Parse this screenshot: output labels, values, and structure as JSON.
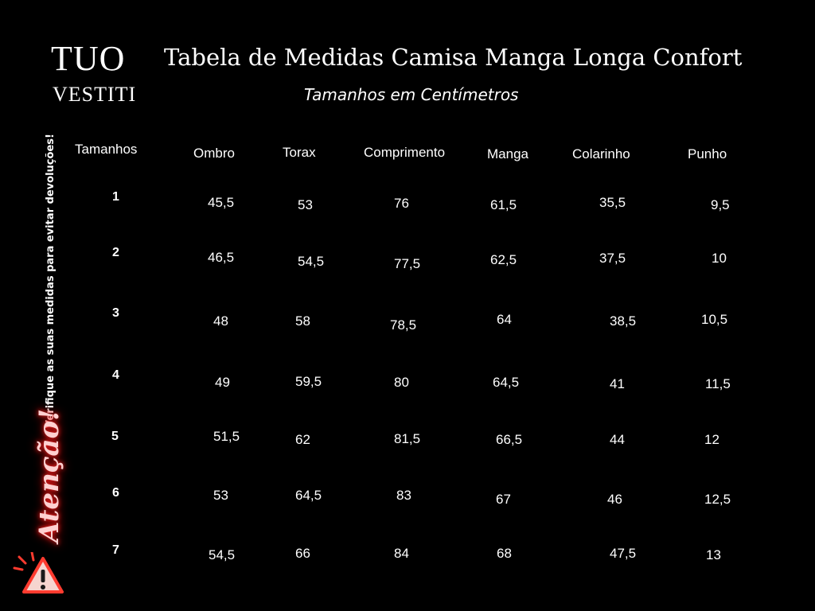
{
  "logo": {
    "line1": "TUO",
    "line2": "VESTITI"
  },
  "title": "Tabela de Medidas Camisa Manga Longa Confort",
  "subtitle": "Tamanhos em Centímetros",
  "notice": "Verifique as suas medidas para evitar devoluções!",
  "attention": "Atenção!",
  "warning_icon": "warning-triangle-icon",
  "colors": {
    "background": "#000000",
    "text": "#ffffff",
    "attention_glow": "#ff2a2a"
  },
  "table": {
    "headers": [
      "Tamanhos",
      "Ombro",
      "Torax",
      "Comprimento",
      "Manga",
      "Colarinho",
      "Punho"
    ],
    "rows": [
      {
        "size": "1",
        "values": [
          "45,5",
          "53",
          "76",
          "61,5",
          "35,5",
          "9,5"
        ]
      },
      {
        "size": "2",
        "values": [
          "46,5",
          "54,5",
          "77,5",
          "62,5",
          "37,5",
          "10"
        ]
      },
      {
        "size": "3",
        "values": [
          "48",
          "58",
          "78,5",
          "64",
          "38,5",
          "10,5"
        ]
      },
      {
        "size": "4",
        "values": [
          "49",
          "59,5",
          "80",
          "64,5",
          "41",
          "11,5"
        ]
      },
      {
        "size": "5",
        "values": [
          "51,5",
          "62",
          "81,5",
          "66,5",
          "44",
          "12"
        ]
      },
      {
        "size": "6",
        "values": [
          "53",
          "64,5",
          "83",
          "67",
          "46",
          "12,5"
        ]
      },
      {
        "size": "7",
        "values": [
          "54,5",
          "66",
          "84",
          "68",
          "47,5",
          "13"
        ]
      }
    ]
  }
}
